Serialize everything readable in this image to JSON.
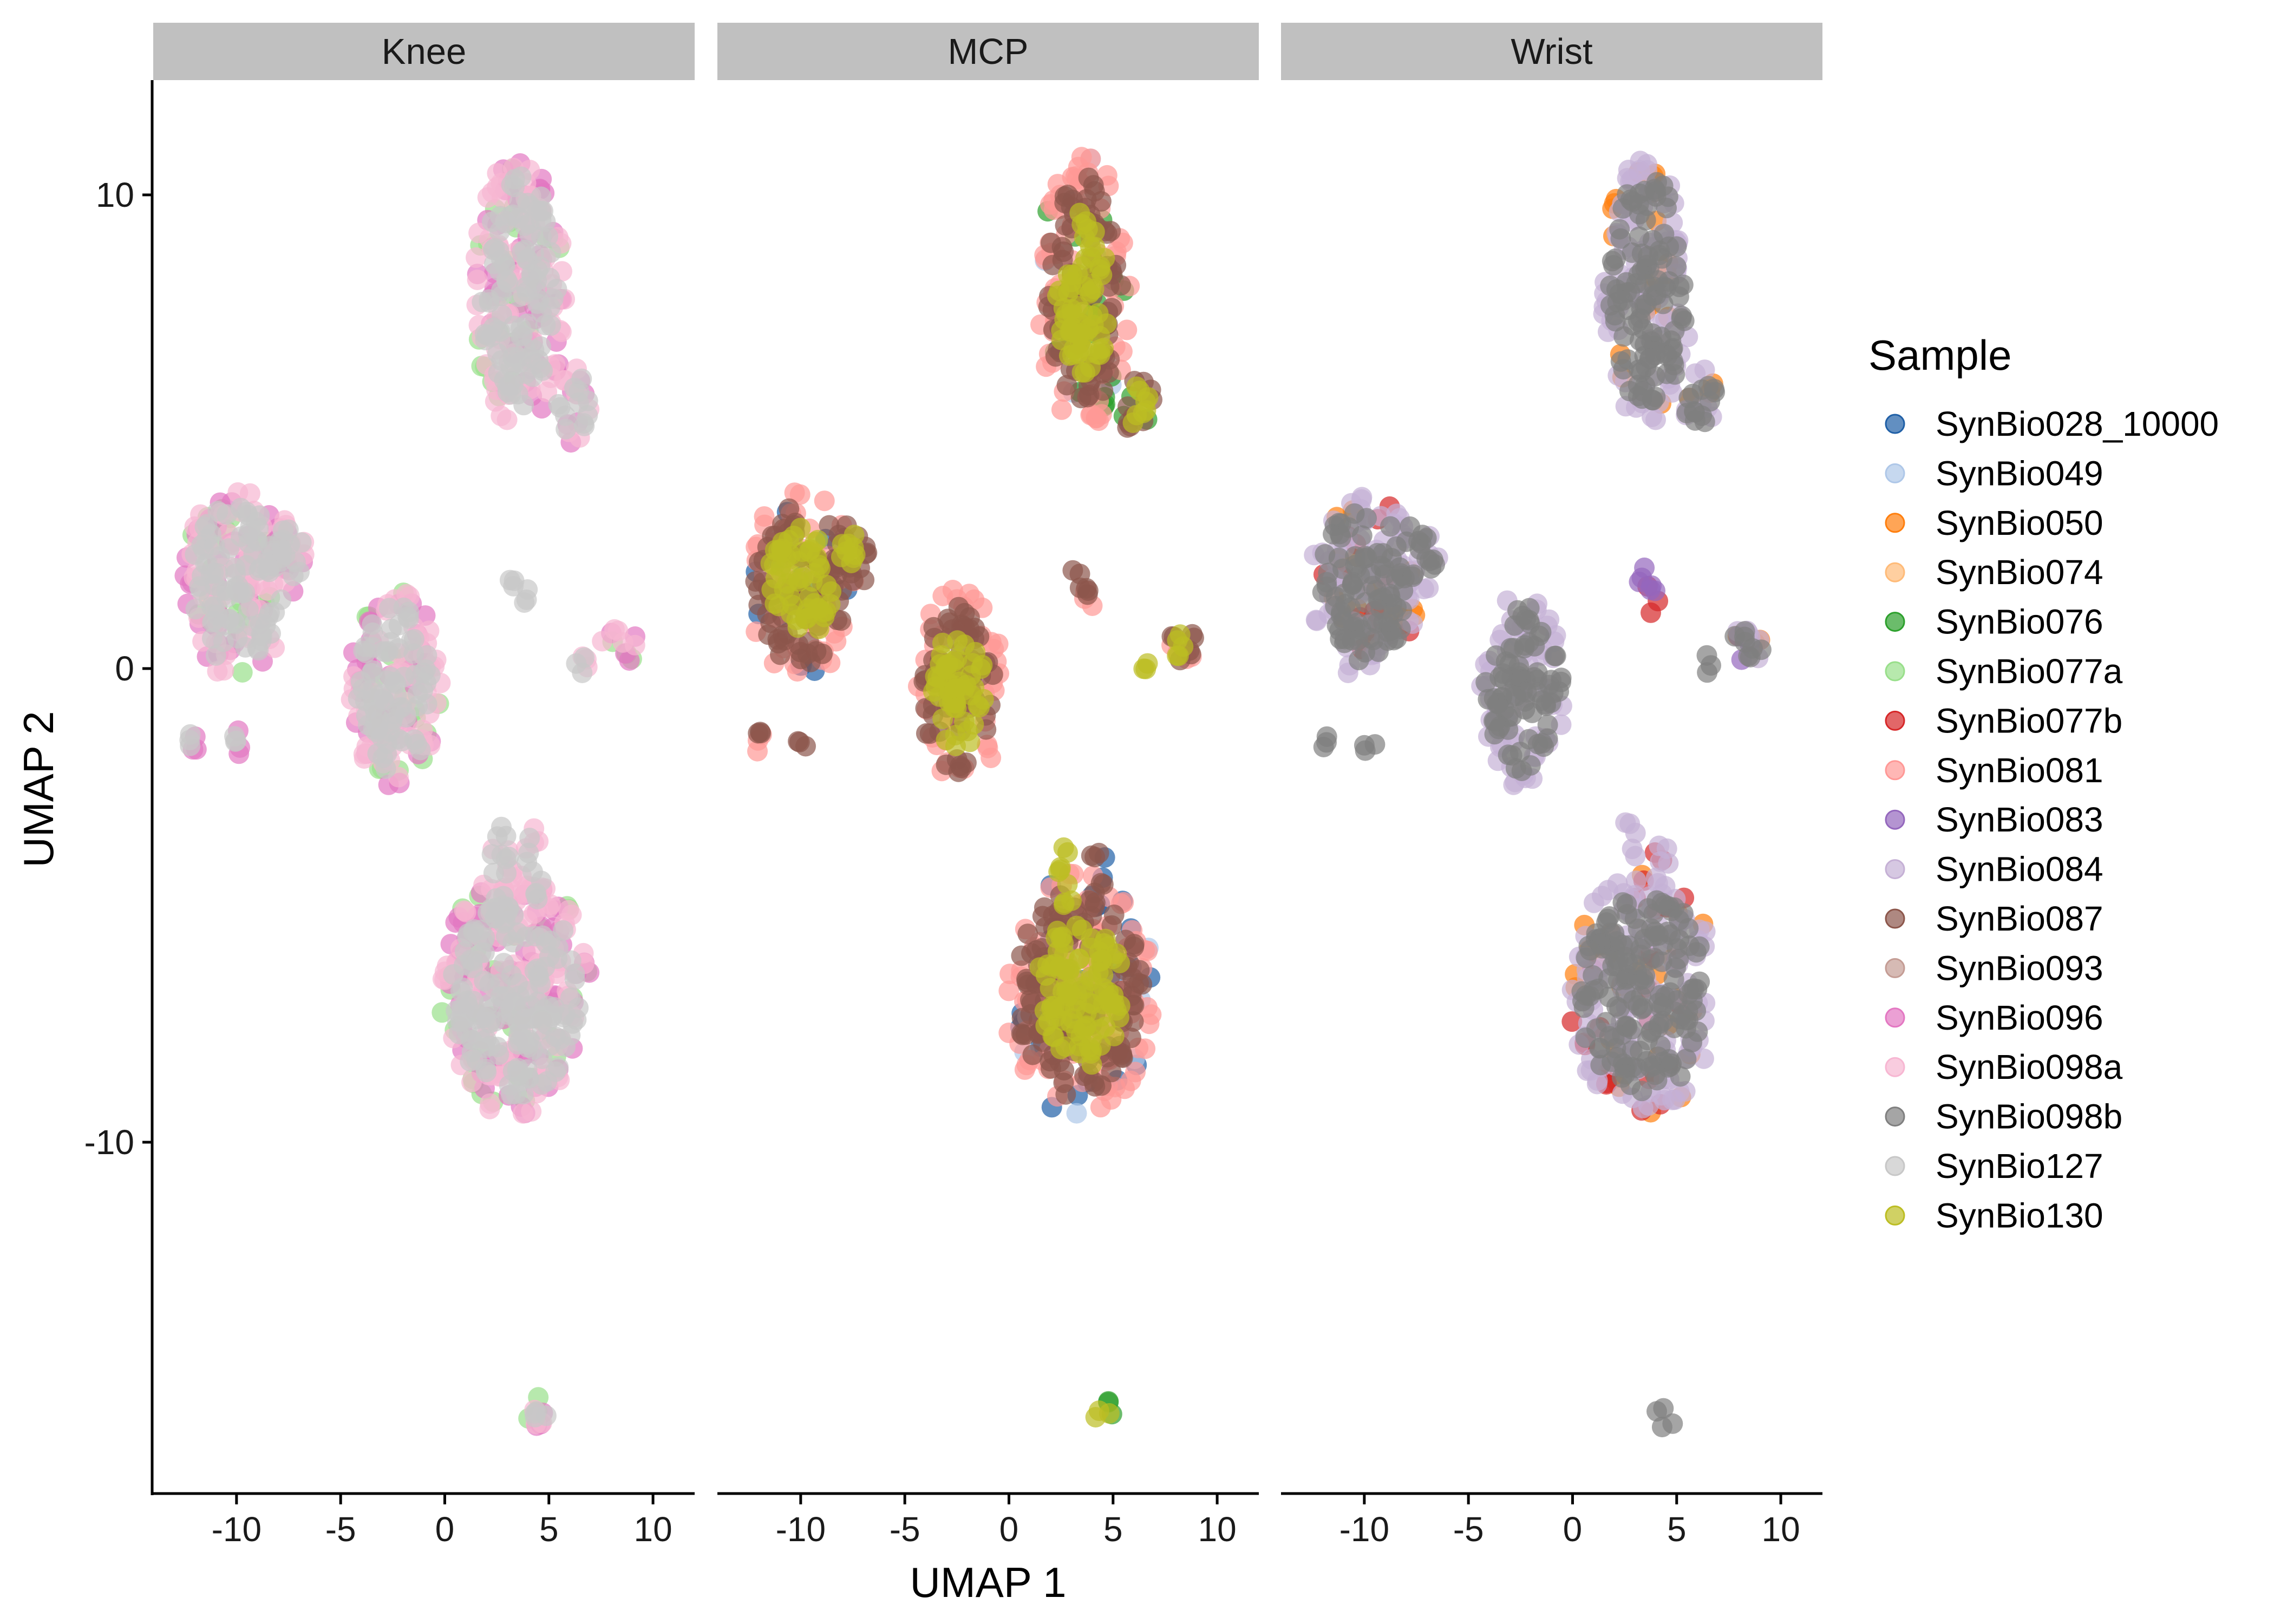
{
  "chart_data": {
    "type": "scatter",
    "facet_by": "Joint",
    "xlabel": "UMAP 1",
    "ylabel": "UMAP 2",
    "xlim": [
      -14,
      12
    ],
    "ylim": [
      -17.5,
      12.5
    ],
    "xticks": [
      -10,
      -5,
      0,
      5,
      10
    ],
    "yticks": [
      -10,
      0,
      10
    ],
    "xtick_labels": [
      "-10",
      "-5",
      "0",
      "5",
      "10"
    ],
    "ytick_labels": [
      "-10",
      "0",
      "10"
    ],
    "grid": false,
    "legend": {
      "title": "Sample",
      "placement": "right",
      "entries": [
        {
          "name": "SynBio028_10000",
          "color": "#1f5fa6"
        },
        {
          "name": "SynBio049",
          "color": "#aec7e8"
        },
        {
          "name": "SynBio050",
          "color": "#ff7f0e"
        },
        {
          "name": "SynBio074",
          "color": "#ffbb78"
        },
        {
          "name": "SynBio076",
          "color": "#2ca02c"
        },
        {
          "name": "SynBio077a",
          "color": "#98df8a"
        },
        {
          "name": "SynBio077b",
          "color": "#d62728"
        },
        {
          "name": "SynBio081",
          "color": "#ff9896"
        },
        {
          "name": "SynBio083",
          "color": "#9467bd"
        },
        {
          "name": "SynBio084",
          "color": "#c5b0d5"
        },
        {
          "name": "SynBio087",
          "color": "#8c564b"
        },
        {
          "name": "SynBio093",
          "color": "#c49c94"
        },
        {
          "name": "SynBio096",
          "color": "#e377c2"
        },
        {
          "name": "SynBio098a",
          "color": "#f7b6d2"
        },
        {
          "name": "SynBio098b",
          "color": "#7f7f7f"
        },
        {
          "name": "SynBio127",
          "color": "#c7c7c7"
        },
        {
          "name": "SynBio130",
          "color": "#bcbd22"
        }
      ]
    },
    "clusters": [
      {
        "cx": 3.6,
        "cy": 8.0,
        "rx": 2.2,
        "ry": 2.9
      },
      {
        "cx": 6.2,
        "cy": 5.6,
        "rx": 0.9,
        "ry": 0.8
      },
      {
        "cx": -10.0,
        "cy": 1.8,
        "rx": 2.6,
        "ry": 2.0
      },
      {
        "cx": -7.5,
        "cy": 2.4,
        "rx": 1.1,
        "ry": 0.8
      },
      {
        "cx": -2.4,
        "cy": -0.4,
        "rx": 2.2,
        "ry": 2.1
      },
      {
        "cx": 3.4,
        "cy": -6.9,
        "rx": 3.6,
        "ry": 2.6
      },
      {
        "cx": 2.7,
        "cy": -4.5,
        "rx": 0.6,
        "ry": 1.4
      },
      {
        "cx": 4.3,
        "cy": -4.3,
        "rx": 0.5,
        "ry": 1.0
      },
      {
        "cx": 8.4,
        "cy": 0.5,
        "rx": 0.9,
        "ry": 0.5
      },
      {
        "cx": 6.5,
        "cy": 0.1,
        "rx": 0.4,
        "ry": 0.25
      },
      {
        "cx": 3.3,
        "cy": 2.0,
        "rx": 0.35,
        "ry": 0.35
      },
      {
        "cx": 3.8,
        "cy": 1.5,
        "rx": 0.35,
        "ry": 0.35
      },
      {
        "cx": -9.8,
        "cy": -1.6,
        "rx": 0.5,
        "ry": 0.3
      },
      {
        "cx": -12.0,
        "cy": -1.5,
        "rx": 0.35,
        "ry": 0.25
      },
      {
        "cx": 4.5,
        "cy": -15.8,
        "rx": 0.6,
        "ry": 0.4
      }
    ],
    "panels": [
      {
        "label": "Knee",
        "layers": [
          {
            "sample": "SynBio077a",
            "clusters": [
              0,
              2,
              4,
              5,
              8,
              14
            ],
            "density": 0.35
          },
          {
            "sample": "SynBio096",
            "clusters": [
              0,
              1,
              2,
              3,
              4,
              5,
              8,
              12,
              13,
              14
            ],
            "density": 0.7
          },
          {
            "sample": "SynBio098a",
            "clusters": [
              0,
              1,
              2,
              3,
              4,
              5,
              6,
              7,
              8,
              9,
              14
            ],
            "density": 1.0
          },
          {
            "sample": "SynBio127",
            "clusters": [
              0,
              1,
              2,
              3,
              4,
              5,
              6,
              7,
              9,
              10,
              11,
              12,
              13,
              14
            ],
            "density": 1.4,
            "inner": 0.85
          }
        ]
      },
      {
        "label": "MCP",
        "layers": [
          {
            "sample": "SynBio028_10000",
            "clusters": [
              2,
              5,
              7
            ],
            "density": 0.25
          },
          {
            "sample": "SynBio049",
            "clusters": [
              0,
              5
            ],
            "density": 0.15
          },
          {
            "sample": "SynBio076",
            "clusters": [
              0,
              1,
              14
            ],
            "density": 0.25
          },
          {
            "sample": "SynBio081",
            "clusters": [
              0,
              2,
              4,
              5,
              8,
              11,
              13
            ],
            "density": 1.0
          },
          {
            "sample": "SynBio087",
            "clusters": [
              0,
              1,
              2,
              3,
              4,
              5,
              7,
              8,
              10,
              11,
              12,
              13
            ],
            "density": 1.3,
            "inner": 0.85
          },
          {
            "sample": "SynBio130",
            "clusters": [
              0,
              1,
              2,
              3,
              4,
              5,
              6,
              8,
              9,
              14
            ],
            "density": 0.9,
            "inner": 0.6
          }
        ]
      },
      {
        "label": "Wrist",
        "layers": [
          {
            "sample": "SynBio050",
            "clusters": [
              0,
              1,
              2,
              5,
              8
            ],
            "density": 0.25
          },
          {
            "sample": "SynBio077b",
            "clusters": [
              2,
              5,
              7,
              11
            ],
            "density": 0.2
          },
          {
            "sample": "SynBio083",
            "clusters": [
              8,
              10,
              11
            ],
            "density": 0.5
          },
          {
            "sample": "SynBio084",
            "clusters": [
              0,
              1,
              2,
              3,
              4,
              5,
              6,
              7,
              8
            ],
            "density": 1.1
          },
          {
            "sample": "SynBio098b",
            "clusters": [
              0,
              1,
              2,
              3,
              4,
              5,
              8,
              9,
              12,
              13,
              14
            ],
            "density": 1.5,
            "inner": 0.85
          }
        ]
      }
    ]
  }
}
